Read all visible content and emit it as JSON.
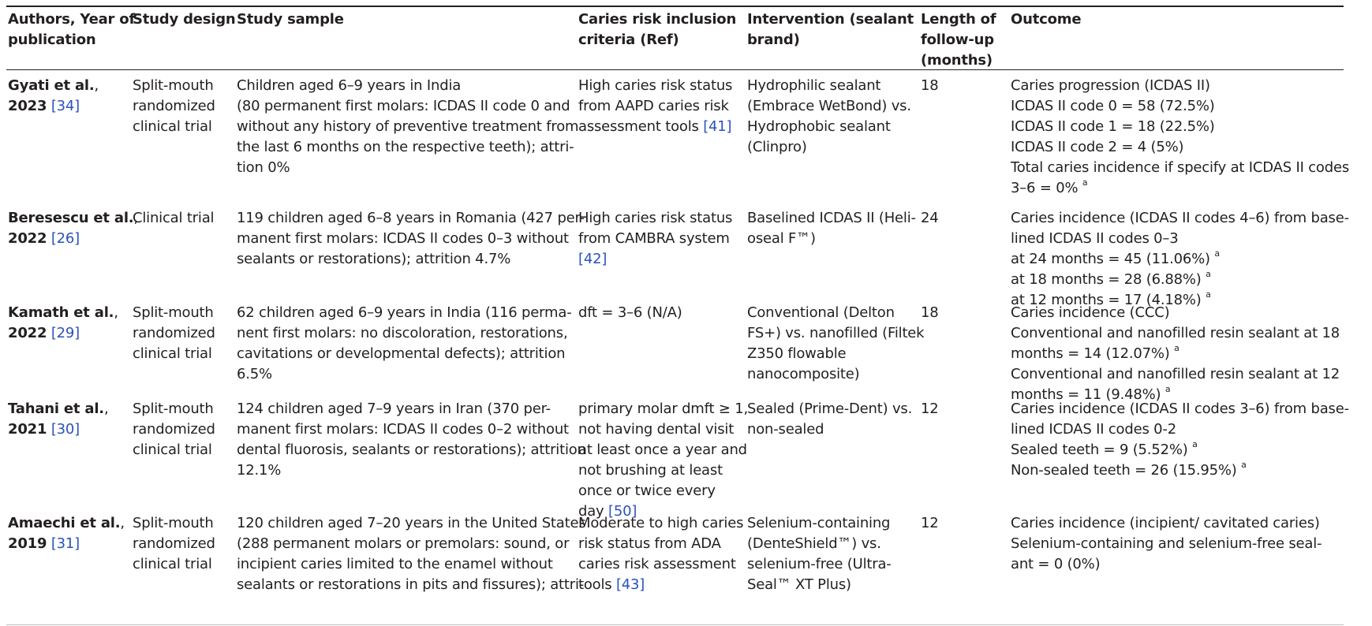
{
  "header": {
    "authors": [
      "Authors, Year of",
      "publication"
    ],
    "design": [
      "Study design"
    ],
    "sample": [
      "Study sample"
    ],
    "criteria": [
      "Caries risk inclusion",
      "criteria (Ref)"
    ],
    "intervention": [
      "Intervention (sealant",
      "brand)"
    ],
    "followup": [
      "Length of",
      "follow-up",
      "(months)"
    ],
    "outcome": [
      "Outcome"
    ]
  },
  "rows": [
    {
      "author": "Gyati et al.",
      "year": "2023",
      "ref": "[34]",
      "design": [
        "Split-mouth",
        "randomized",
        "clinical trial"
      ],
      "sample": [
        "Children aged 6–9 years in India",
        "(80 permanent first molars: ICDAS II code 0 and",
        "without any history of preventive treatment from",
        "the last 6 months on the respective teeth); attri-",
        "tion 0%"
      ],
      "criteria": [
        "High caries risk status",
        "from AAPD caries risk",
        "assessment tools "
      ],
      "criteria_ref": "[41]",
      "intervention": [
        "Hydrophilic sealant",
        "(Embrace WetBond) vs.",
        "Hydrophobic sealant",
        "(Clinpro)"
      ],
      "followup": "18",
      "outcome": [
        "Caries progression (ICDAS II)",
        "ICDAS II code 0 = 58 (72.5%)",
        "ICDAS II code 1 = 18 (22.5%)",
        "ICDAS II code 2 = 4 (5%)",
        "Total caries incidence if specify at ICDAS II codes",
        "3–6 = 0% "
      ],
      "outcome_sup": "a"
    },
    {
      "author": "Beresescu et al.",
      "year": "2022",
      "ref": "[26]",
      "design": [
        "Clinical trial"
      ],
      "sample": [
        "119 children aged 6–8 years in Romania (427 per-",
        "manent first molars: ICDAS II codes 0–3 without",
        "sealants or restorations); attrition 4.7%"
      ],
      "criteria": [
        "High caries risk status",
        "from CAMBRA system"
      ],
      "criteria_ref": "[42]",
      "intervention": [
        "Baselined ICDAS II (Heli-",
        "oseal F™)"
      ],
      "followup": "24",
      "outcome": [
        "Caries incidence (ICDAS II codes 4–6) from base-",
        "lined ICDAS II codes 0–3",
        "at 24 months = 45 (11.06%) ",
        "at 18 months = 28 (6.88%) ",
        "at 12 months = 17 (4.18%) "
      ],
      "outcome_sup": "a"
    },
    {
      "author": "Kamath et al.",
      "year": "2022",
      "ref": "[29]",
      "design": [
        "Split-mouth",
        "randomized",
        "clinical trial"
      ],
      "sample": [
        "62 children aged 6–9 years in India (116 perma-",
        "nent first molars: no discoloration, restorations,",
        "cavitations or developmental defects); attrition",
        "6.5%"
      ],
      "criteria": [
        "dft = 3–6 (N/A)"
      ],
      "criteria_ref": "",
      "intervention": [
        "Conventional (Delton",
        "FS+) vs. nanofilled (Filtek",
        "Z350 flowable",
        "nanocomposite)"
      ],
      "followup": "18",
      "outcome": [
        "Caries incidence (CCC)",
        "Conventional and nanofilled resin sealant at 18",
        "months = 14 (12.07%) ",
        "Conventional and nanofilled resin sealant at 12",
        "months = 11 (9.48%) "
      ],
      "outcome_sup": "a"
    },
    {
      "author": "Tahani et al.",
      "year": "2021",
      "ref": "[30]",
      "design": [
        "Split-mouth",
        "randomized",
        "clinical trial"
      ],
      "sample": [
        "124 children aged 7–9 years in Iran (370 per-",
        "manent first molars: ICDAS II codes 0–2 without",
        "dental fluorosis, sealants or restorations); attrition",
        "12.1%"
      ],
      "criteria": [
        "primary molar dmft ≥ 1,",
        "not having dental visit",
        "at least once a year and",
        "not brushing at least",
        "once or twice every",
        "day "
      ],
      "criteria_ref": "[50]",
      "intervention": [
        "Sealed (Prime-Dent) vs.",
        "non-sealed"
      ],
      "followup": "12",
      "outcome": [
        "Caries incidence (ICDAS II codes 3–6) from base-",
        "lined ICDAS II codes 0-2",
        "Sealed teeth = 9 (5.52%) ",
        "Non-sealed teeth = 26 (15.95%) "
      ],
      "outcome_sup": "a"
    },
    {
      "author": "Amaechi et al.",
      "year": "2019",
      "ref": "[31]",
      "design": [
        "Split-mouth",
        "randomized",
        "clinical trial"
      ],
      "sample": [
        "120 children aged 7–20 years in the United States",
        "(288 permanent molars or premolars: sound, or",
        "incipient caries limited to the enamel without",
        "sealants or restorations in pits and fissures); attri-"
      ],
      "criteria": [
        "Moderate to high caries",
        "risk status from ADA",
        "caries risk assessment",
        "tools "
      ],
      "criteria_ref": "[43]",
      "intervention": [
        "Selenium-containing",
        "(DenteShield™) vs.",
        "selenium-free (Ultra-",
        "Seal™ XT Plus)"
      ],
      "followup": "12",
      "outcome": [
        "Caries incidence (incipient/ cavitated caries)",
        "Selenium-containing and selenium-free seal-",
        "ant = 0 (0%)"
      ],
      "outcome_sup": ""
    }
  ],
  "colors": {
    "text": "#231f20",
    "link": "#2a52be",
    "rule": "#231f20"
  }
}
